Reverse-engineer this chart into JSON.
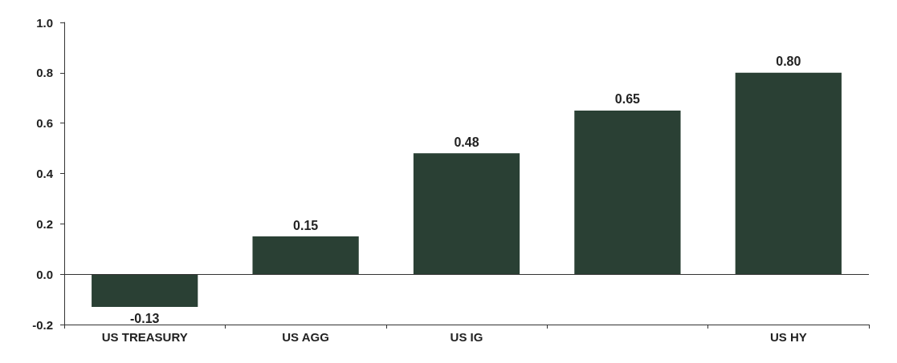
{
  "chart_data": {
    "type": "bar",
    "categories": [
      "US TREASURY",
      "US AGG",
      "US IG",
      null,
      "US HY"
    ],
    "values": [
      -0.13,
      0.15,
      0.48,
      0.65,
      0.8
    ],
    "color": "#2a4034",
    "value_labels": [
      "-0.13",
      "0.15",
      "0.48",
      "0.65",
      "0.80"
    ],
    "ylim": [
      -0.2,
      1.0
    ],
    "yticks": [
      {
        "value": -0.2,
        "label": "-0.2"
      },
      {
        "value": 0,
        "label": "0.0"
      },
      {
        "value": 0.2,
        "label": "0.2"
      },
      {
        "value": 0.4,
        "label": "0.4"
      },
      {
        "value": 0.6,
        "label": "0.6"
      },
      {
        "value": 0.8,
        "label": "0.8"
      },
      {
        "value": 1.0,
        "label": "1.0"
      }
    ],
    "ref_lines": [
      {
        "axis": "y",
        "value": 0
      }
    ],
    "grid": false
  }
}
